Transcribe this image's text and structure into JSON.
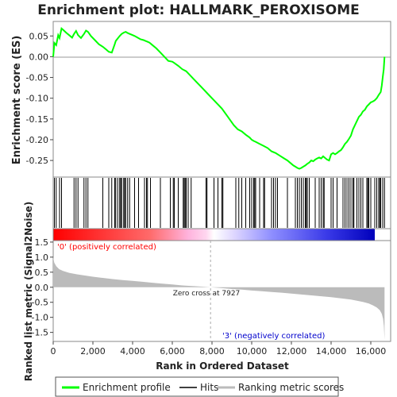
{
  "chart_data": {
    "type": "line",
    "title": "Enrichment plot: HALLMARK_PEROXISOME",
    "top_panel": {
      "ylabel": "Enrichment score (ES)",
      "ylim": [
        -0.29,
        0.085
      ],
      "yticks": [
        0.05,
        0.0,
        -0.05,
        -0.1,
        -0.15,
        -0.2,
        -0.25
      ],
      "ytick_labels": [
        "0.05",
        "0.00",
        "-0.05",
        "-0.10",
        "-0.15",
        "-0.20",
        "-0.25"
      ],
      "series": [
        {
          "name": "Enrichment profile",
          "color": "#00ff00",
          "x": [
            0,
            60,
            150,
            250,
            320,
            420,
            520,
            650,
            800,
            950,
            1050,
            1150,
            1250,
            1400,
            1550,
            1650,
            1750,
            1900,
            2100,
            2300,
            2500,
            2650,
            2800,
            2950,
            3100,
            3150,
            3250,
            3350,
            3450,
            3550,
            3650,
            3750,
            3850,
            3950,
            4100,
            4250,
            4400,
            4550,
            4650,
            4750,
            4850,
            5000,
            5200,
            5400,
            5600,
            5800,
            6000,
            6100,
            6300,
            6500,
            6700,
            6900,
            7200,
            7500,
            7800,
            8100,
            8500,
            8800,
            9100,
            9300,
            9500,
            9700,
            9900,
            10000,
            10100,
            10200,
            10400,
            10600,
            10800,
            11000,
            11200,
            11400,
            11600,
            11800,
            12000,
            12100,
            12200,
            12300,
            12400,
            12500,
            12600,
            12700,
            12800,
            12900,
            13000,
            13100,
            13200,
            13300,
            13400,
            13500,
            13600,
            13700,
            13800,
            13900,
            14000,
            14100,
            14200,
            14300,
            14400,
            14500,
            14600,
            14700,
            14800,
            14900,
            15000,
            15100,
            15200,
            15300,
            15400,
            15500,
            15600,
            15700,
            15800,
            15900,
            16000,
            16100,
            16200,
            16300,
            16400,
            16500,
            16550,
            16600,
            16650,
            16690
          ],
          "y": [
            0.0,
            0.033,
            0.028,
            0.052,
            0.045,
            0.068,
            0.064,
            0.058,
            0.052,
            0.046,
            0.055,
            0.062,
            0.052,
            0.045,
            0.055,
            0.063,
            0.06,
            0.05,
            0.04,
            0.03,
            0.024,
            0.018,
            0.012,
            0.01,
            0.03,
            0.038,
            0.044,
            0.05,
            0.055,
            0.058,
            0.06,
            0.057,
            0.055,
            0.053,
            0.05,
            0.046,
            0.042,
            0.04,
            0.038,
            0.036,
            0.034,
            0.028,
            0.02,
            0.01,
            0.0,
            -0.01,
            -0.012,
            -0.015,
            -0.022,
            -0.03,
            -0.035,
            -0.045,
            -0.06,
            -0.075,
            -0.09,
            -0.105,
            -0.125,
            -0.145,
            -0.165,
            -0.175,
            -0.18,
            -0.188,
            -0.195,
            -0.2,
            -0.203,
            -0.205,
            -0.21,
            -0.215,
            -0.22,
            -0.228,
            -0.232,
            -0.238,
            -0.244,
            -0.25,
            -0.258,
            -0.262,
            -0.265,
            -0.268,
            -0.27,
            -0.268,
            -0.265,
            -0.262,
            -0.258,
            -0.255,
            -0.25,
            -0.252,
            -0.248,
            -0.245,
            -0.243,
            -0.245,
            -0.24,
            -0.244,
            -0.248,
            -0.25,
            -0.235,
            -0.232,
            -0.235,
            -0.232,
            -0.228,
            -0.225,
            -0.218,
            -0.21,
            -0.205,
            -0.198,
            -0.19,
            -0.175,
            -0.165,
            -0.155,
            -0.145,
            -0.14,
            -0.132,
            -0.128,
            -0.12,
            -0.115,
            -0.11,
            -0.108,
            -0.105,
            -0.1,
            -0.092,
            -0.085,
            -0.07,
            -0.05,
            -0.03,
            0.0
          ]
        }
      ]
    },
    "hits_panel": {
      "series_name": "Hits",
      "hit_positions": [
        60,
        150,
        320,
        420,
        1050,
        1150,
        1250,
        1550,
        1650,
        1750,
        2500,
        2800,
        2950,
        3100,
        3150,
        3250,
        3350,
        3400,
        3450,
        3550,
        3600,
        3650,
        3750,
        3850,
        4100,
        4300,
        4600,
        4700,
        4750,
        4900,
        5400,
        5900,
        6050,
        6100,
        6300,
        6550,
        6600,
        6650,
        6700,
        6800,
        6950,
        7700,
        7750,
        8100,
        8300,
        8500,
        8550,
        9200,
        9350,
        9500,
        9700,
        9900,
        10000,
        10100,
        10150,
        10200,
        10400,
        10600,
        10650,
        11000,
        11100,
        11200,
        11300,
        11800,
        12200,
        12300,
        12400,
        12500,
        12600,
        12700,
        12750,
        12800,
        12900,
        13200,
        13400,
        13500,
        13600,
        13650,
        14000,
        14100,
        14300,
        14600,
        14700,
        14800,
        14900,
        15000,
        15100,
        15150,
        15300,
        15400,
        15500,
        15600,
        15800,
        15850,
        15900,
        16000,
        16200,
        16300,
        16400,
        16450,
        16500,
        16600,
        16690
      ]
    },
    "bottom_panel": {
      "ylabel": "Ranked list metric (Signal2Noise)",
      "xlabel": "Rank in Ordered Dataset",
      "ylim": [
        -1.8,
        1.55
      ],
      "yticks": [
        1.5,
        1.0,
        0.5,
        0.0,
        -0.5,
        -1.0,
        -1.5
      ],
      "ytick_labels": [
        "1.5",
        "1.0",
        "0.5",
        "0.0",
        "-0.5",
        "-1.0",
        "-1.5"
      ],
      "series": [
        {
          "name": "Ranking metric scores",
          "color": "#bbbbbb",
          "x": [
            0,
            50,
            150,
            300,
            500,
            800,
            1200,
            1600,
            2000,
            2500,
            3000,
            3500,
            4000,
            4500,
            5000,
            5500,
            6000,
            6500,
            7000,
            7500,
            7927,
            8500,
            9000,
            9500,
            10000,
            10500,
            11000,
            11500,
            12000,
            12500,
            13000,
            13500,
            14000,
            14500,
            15000,
            15300,
            15600,
            15900,
            16100,
            16300,
            16450,
            16550,
            16620,
            16660,
            16690
          ],
          "y": [
            1.0,
            0.82,
            0.7,
            0.6,
            0.54,
            0.48,
            0.43,
            0.39,
            0.35,
            0.31,
            0.27,
            0.24,
            0.21,
            0.18,
            0.15,
            0.12,
            0.09,
            0.06,
            0.04,
            0.02,
            0.0,
            -0.03,
            -0.06,
            -0.08,
            -0.11,
            -0.13,
            -0.16,
            -0.18,
            -0.21,
            -0.24,
            -0.27,
            -0.3,
            -0.33,
            -0.37,
            -0.41,
            -0.45,
            -0.49,
            -0.54,
            -0.6,
            -0.67,
            -0.76,
            -0.88,
            -1.05,
            -1.3,
            -1.75
          ]
        }
      ],
      "zero_cross": 7927,
      "zero_cross_label": "Zero cross at 7927",
      "positive_label": "'0' (positively correlated)",
      "negative_label": "'3' (negatively correlated)",
      "positive_color": "#ff0000",
      "negative_color": "#0000cc"
    },
    "xlim": [
      0,
      17000
    ],
    "xticks": [
      0,
      2000,
      4000,
      6000,
      8000,
      10000,
      12000,
      14000,
      16000
    ],
    "xtick_labels": [
      "0",
      "2,000",
      "4,000",
      "6,000",
      "8,000",
      "10,000",
      "12,000",
      "14,000",
      "16,000"
    ],
    "legend": {
      "placement": "bottom",
      "entries": [
        {
          "label": "Enrichment profile",
          "color": "#00ff00"
        },
        {
          "label": "Hits",
          "color": "#000000"
        },
        {
          "label": "Ranking metric scores",
          "color": "#bbbbbb"
        }
      ]
    }
  }
}
